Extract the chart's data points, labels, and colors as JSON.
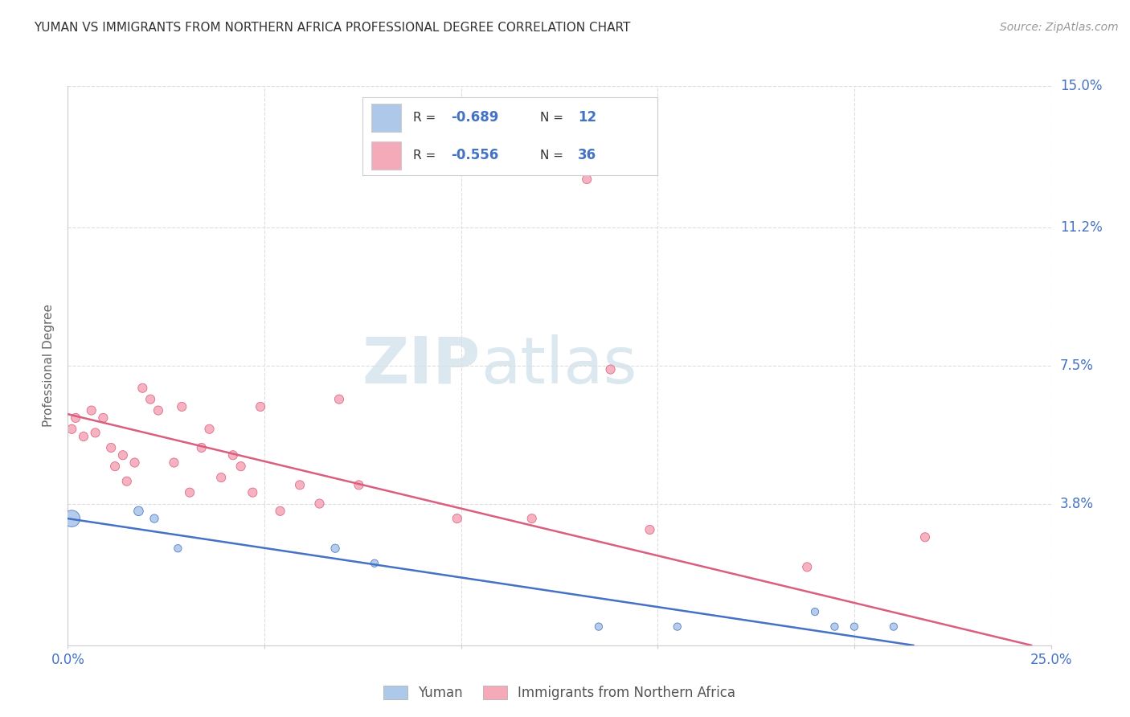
{
  "title": "YUMAN VS IMMIGRANTS FROM NORTHERN AFRICA PROFESSIONAL DEGREE CORRELATION CHART",
  "source": "Source: ZipAtlas.com",
  "ylabel": "Professional Degree",
  "xlim": [
    0.0,
    0.25
  ],
  "ylim": [
    0.0,
    0.15
  ],
  "yticks": [
    0.0,
    0.038,
    0.075,
    0.112,
    0.15
  ],
  "ytick_labels": [
    "",
    "3.8%",
    "7.5%",
    "11.2%",
    "15.0%"
  ],
  "background_color": "#ffffff",
  "series1_name": "Yuman",
  "series2_name": "Immigrants from Northern Africa",
  "series1_color": "#adc8e8",
  "series2_color": "#f5aaba",
  "line1_color": "#4472c4",
  "line2_color": "#d95f7f",
  "series1_x": [
    0.001,
    0.018,
    0.022,
    0.028,
    0.068,
    0.078,
    0.135,
    0.155,
    0.19,
    0.195,
    0.2,
    0.21
  ],
  "series1_y": [
    0.034,
    0.036,
    0.034,
    0.026,
    0.026,
    0.022,
    0.005,
    0.005,
    0.009,
    0.005,
    0.005,
    0.005
  ],
  "series1_size": [
    220,
    70,
    55,
    45,
    55,
    45,
    45,
    45,
    45,
    45,
    45,
    45
  ],
  "series2_x": [
    0.001,
    0.002,
    0.004,
    0.006,
    0.007,
    0.009,
    0.011,
    0.012,
    0.014,
    0.015,
    0.017,
    0.019,
    0.021,
    0.023,
    0.027,
    0.029,
    0.031,
    0.034,
    0.036,
    0.039,
    0.042,
    0.044,
    0.047,
    0.049,
    0.054,
    0.059,
    0.064,
    0.069,
    0.074,
    0.099,
    0.118,
    0.132,
    0.138,
    0.148,
    0.188,
    0.218
  ],
  "series2_y": [
    0.058,
    0.061,
    0.056,
    0.063,
    0.057,
    0.061,
    0.053,
    0.048,
    0.051,
    0.044,
    0.049,
    0.069,
    0.066,
    0.063,
    0.049,
    0.064,
    0.041,
    0.053,
    0.058,
    0.045,
    0.051,
    0.048,
    0.041,
    0.064,
    0.036,
    0.043,
    0.038,
    0.066,
    0.043,
    0.034,
    0.034,
    0.125,
    0.074,
    0.031,
    0.021,
    0.029
  ],
  "series2_size": [
    65,
    65,
    65,
    65,
    65,
    65,
    65,
    65,
    65,
    65,
    65,
    65,
    65,
    65,
    65,
    65,
    65,
    65,
    65,
    65,
    65,
    65,
    65,
    65,
    65,
    65,
    65,
    65,
    65,
    65,
    65,
    65,
    65,
    65,
    65,
    65
  ],
  "line1_x_start": 0.0,
  "line1_y_start": 0.034,
  "line1_x_end": 0.215,
  "line1_y_end": 0.0,
  "line2_x_start": 0.0,
  "line2_y_start": 0.062,
  "line2_x_end": 0.245,
  "line2_y_end": 0.0
}
